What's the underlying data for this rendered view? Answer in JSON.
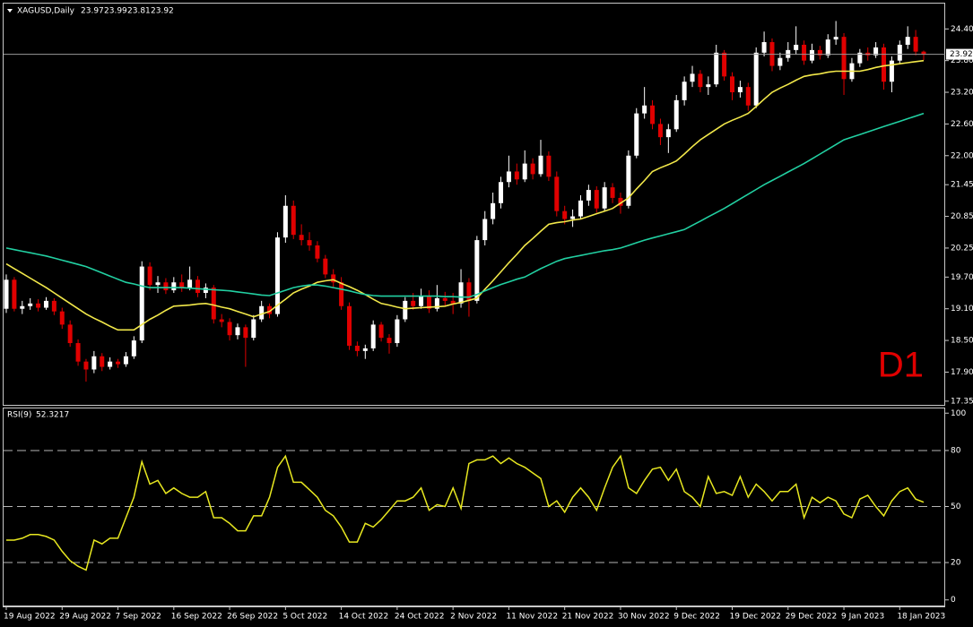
{
  "chart_data": [
    {
      "type": "candlestick",
      "title": "XAGUSD,Daily",
      "annotation": "D1",
      "categories": [
        "19 Aug 2022",
        null,
        null,
        null,
        null,
        null,
        null,
        "29 Aug 2022",
        null,
        null,
        null,
        null,
        null,
        null,
        "7 Sep 2022",
        null,
        null,
        null,
        null,
        null,
        null,
        "16 Sep 2022",
        null,
        null,
        null,
        null,
        null,
        null,
        "26 Sep 2022",
        null,
        null,
        null,
        null,
        null,
        null,
        "5 Oct 2022",
        null,
        null,
        null,
        null,
        null,
        null,
        "14 Oct 2022",
        null,
        null,
        null,
        null,
        null,
        null,
        "24 Oct 2022",
        null,
        null,
        null,
        null,
        null,
        null,
        "2 Nov 2022",
        null,
        null,
        null,
        null,
        null,
        null,
        "11 Nov 2022",
        null,
        null,
        null,
        null,
        null,
        null,
        "21 Nov 2022",
        null,
        null,
        null,
        null,
        null,
        null,
        "30 Nov 2022",
        null,
        null,
        null,
        null,
        null,
        null,
        "9 Dec 2022",
        null,
        null,
        null,
        null,
        null,
        null,
        "19 Dec 2022",
        null,
        null,
        null,
        null,
        null,
        null,
        "29 Dec 2022",
        null,
        null,
        null,
        null,
        null,
        null,
        "9 Jan 2023",
        null,
        null,
        null,
        null,
        null,
        null,
        "18 Jan 2023",
        null,
        null,
        null
      ],
      "candles": [
        [
          19.1,
          19.75,
          19.02,
          19.65
        ],
        [
          19.65,
          19.7,
          19.05,
          19.1
        ],
        [
          19.1,
          19.25,
          19.0,
          19.15
        ],
        [
          19.15,
          19.3,
          19.08,
          19.2
        ],
        [
          19.2,
          19.28,
          19.05,
          19.12
        ],
        [
          19.12,
          19.32,
          19.08,
          19.25
        ],
        [
          19.25,
          19.3,
          18.98,
          19.05
        ],
        [
          19.05,
          19.12,
          18.72,
          18.8
        ],
        [
          18.8,
          18.88,
          18.38,
          18.45
        ],
        [
          18.45,
          18.52,
          18.02,
          18.1
        ],
        [
          18.1,
          18.15,
          17.72,
          17.95
        ],
        [
          17.95,
          18.3,
          17.88,
          18.2
        ],
        [
          18.2,
          18.26,
          17.92,
          18.0
        ],
        [
          18.0,
          18.18,
          17.95,
          18.1
        ],
        [
          18.1,
          18.15,
          17.98,
          18.05
        ],
        [
          18.05,
          18.28,
          18.0,
          18.2
        ],
        [
          18.2,
          18.58,
          18.15,
          18.5
        ],
        [
          18.5,
          20.0,
          18.45,
          19.9
        ],
        [
          19.9,
          19.98,
          19.45,
          19.55
        ],
        [
          19.55,
          19.72,
          19.4,
          19.6
        ],
        [
          19.6,
          19.68,
          19.38,
          19.45
        ],
        [
          19.45,
          19.7,
          19.4,
          19.6
        ],
        [
          19.6,
          19.75,
          19.42,
          19.5
        ],
        [
          19.5,
          19.9,
          19.45,
          19.65
        ],
        [
          19.65,
          19.72,
          19.32,
          19.4
        ],
        [
          19.4,
          19.58,
          19.3,
          19.5
        ],
        [
          19.5,
          19.55,
          18.82,
          18.9
        ],
        [
          18.9,
          19.0,
          18.75,
          18.85
        ],
        [
          18.85,
          18.92,
          18.5,
          18.6
        ],
        [
          18.6,
          18.82,
          18.52,
          18.75
        ],
        [
          18.75,
          18.8,
          18.0,
          18.55
        ],
        [
          18.55,
          18.98,
          18.5,
          18.9
        ],
        [
          18.9,
          19.25,
          18.85,
          19.15
        ],
        [
          19.15,
          19.2,
          18.92,
          19.0
        ],
        [
          19.0,
          20.55,
          18.95,
          20.45
        ],
        [
          20.45,
          21.25,
          20.35,
          21.05
        ],
        [
          21.05,
          21.15,
          20.42,
          20.5
        ],
        [
          20.5,
          20.7,
          20.3,
          20.4
        ],
        [
          20.4,
          20.55,
          20.2,
          20.3
        ],
        [
          20.3,
          20.38,
          19.98,
          20.05
        ],
        [
          20.05,
          20.12,
          19.68,
          19.75
        ],
        [
          19.75,
          19.85,
          19.5,
          19.6
        ],
        [
          19.6,
          19.7,
          19.08,
          19.15
        ],
        [
          19.15,
          19.22,
          18.32,
          18.4
        ],
        [
          18.4,
          18.48,
          18.2,
          18.3
        ],
        [
          18.3,
          18.42,
          18.15,
          18.35
        ],
        [
          18.35,
          18.88,
          18.3,
          18.8
        ],
        [
          18.8,
          18.85,
          18.48,
          18.55
        ],
        [
          18.55,
          18.62,
          18.25,
          18.45
        ],
        [
          18.45,
          18.98,
          18.38,
          18.9
        ],
        [
          18.9,
          19.32,
          18.85,
          19.25
        ],
        [
          19.25,
          19.4,
          19.08,
          19.15
        ],
        [
          19.15,
          19.48,
          19.1,
          19.35
        ],
        [
          19.35,
          19.45,
          19.02,
          19.1
        ],
        [
          19.1,
          19.55,
          19.05,
          19.3
        ],
        [
          19.3,
          19.42,
          19.15,
          19.25
        ],
        [
          19.25,
          19.4,
          19.0,
          19.2
        ],
        [
          19.2,
          19.85,
          19.12,
          19.6
        ],
        [
          19.6,
          19.68,
          18.95,
          19.25
        ],
        [
          19.25,
          20.48,
          19.2,
          20.4
        ],
        [
          20.4,
          20.95,
          20.3,
          20.8
        ],
        [
          20.8,
          21.3,
          20.7,
          21.1
        ],
        [
          21.1,
          21.6,
          21.0,
          21.5
        ],
        [
          21.5,
          22.0,
          21.4,
          21.7
        ],
        [
          21.7,
          21.85,
          21.45,
          21.55
        ],
        [
          21.55,
          22.1,
          21.5,
          21.85
        ],
        [
          21.85,
          21.95,
          21.55,
          21.65
        ],
        [
          21.65,
          22.3,
          21.6,
          22.0
        ],
        [
          22.0,
          22.08,
          21.52,
          21.6
        ],
        [
          21.6,
          21.7,
          20.85,
          20.95
        ],
        [
          20.95,
          21.05,
          20.7,
          20.8
        ],
        [
          20.8,
          20.98,
          20.65,
          20.85
        ],
        [
          20.85,
          21.25,
          20.8,
          21.15
        ],
        [
          21.15,
          21.45,
          21.05,
          21.35
        ],
        [
          21.35,
          21.42,
          20.92,
          21.0
        ],
        [
          21.0,
          21.5,
          20.95,
          21.4
        ],
        [
          21.4,
          21.48,
          21.1,
          21.2
        ],
        [
          21.2,
          21.3,
          20.9,
          21.05
        ],
        [
          21.05,
          22.1,
          21.0,
          22.0
        ],
        [
          22.0,
          22.9,
          21.95,
          22.8
        ],
        [
          22.8,
          23.3,
          22.7,
          22.95
        ],
        [
          22.95,
          23.05,
          22.5,
          22.6
        ],
        [
          22.6,
          22.7,
          22.2,
          22.35
        ],
        [
          22.35,
          22.6,
          22.05,
          22.5
        ],
        [
          22.5,
          23.15,
          22.45,
          23.05
        ],
        [
          23.05,
          23.5,
          22.95,
          23.4
        ],
        [
          23.4,
          23.7,
          23.3,
          23.55
        ],
        [
          23.55,
          23.62,
          23.2,
          23.3
        ],
        [
          23.3,
          23.5,
          23.15,
          23.35
        ],
        [
          23.35,
          24.1,
          23.3,
          23.95
        ],
        [
          23.95,
          24.0,
          23.42,
          23.5
        ],
        [
          23.5,
          23.58,
          23.05,
          23.2
        ],
        [
          23.2,
          23.42,
          23.1,
          23.3
        ],
        [
          23.3,
          23.38,
          22.85,
          22.95
        ],
        [
          22.95,
          24.05,
          22.9,
          23.95
        ],
        [
          23.95,
          24.35,
          23.88,
          24.15
        ],
        [
          24.15,
          24.22,
          23.6,
          23.7
        ],
        [
          23.7,
          23.95,
          23.62,
          23.85
        ],
        [
          23.85,
          24.15,
          23.78,
          24.0
        ],
        [
          24.0,
          24.45,
          23.92,
          24.1
        ],
        [
          24.1,
          24.18,
          23.72,
          23.8
        ],
        [
          23.8,
          24.12,
          23.75,
          24.0
        ],
        [
          24.0,
          24.08,
          23.82,
          23.9
        ],
        [
          23.9,
          24.3,
          23.85,
          24.2
        ],
        [
          24.2,
          24.55,
          24.1,
          24.25
        ],
        [
          24.25,
          24.32,
          23.15,
          23.45
        ],
        [
          23.45,
          23.85,
          23.4,
          23.75
        ],
        [
          23.75,
          24.02,
          23.68,
          23.95
        ],
        [
          23.95,
          24.05,
          23.8,
          23.9
        ],
        [
          23.9,
          24.15,
          23.85,
          24.05
        ],
        [
          24.05,
          24.12,
          23.25,
          23.4
        ],
        [
          23.4,
          23.88,
          23.2,
          23.8
        ],
        [
          23.8,
          24.18,
          23.75,
          24.1
        ],
        [
          24.1,
          24.45,
          24.02,
          24.25
        ],
        [
          24.25,
          24.38,
          23.9,
          23.97
        ],
        [
          23.97,
          23.99,
          23.81,
          23.92
        ]
      ],
      "up_color": "#ffffff",
      "down_color": "#e00000",
      "price_line_color": "#9a9a9a",
      "series": [
        {
          "color": "#f2e84a",
          "values": [
            19.95,
            19.86,
            19.77,
            19.68,
            19.59,
            19.5,
            19.4,
            19.3,
            19.2,
            19.1,
            19.0,
            18.92,
            18.85,
            18.77,
            18.7,
            18.7,
            18.7,
            18.8,
            18.9,
            18.98,
            19.07,
            19.15,
            19.16,
            19.17,
            19.19,
            19.2,
            19.17,
            19.13,
            19.1,
            19.05,
            19.0,
            18.95,
            19.0,
            19.05,
            19.17,
            19.28,
            19.4,
            19.47,
            19.53,
            19.6,
            19.63,
            19.65,
            19.58,
            19.52,
            19.45,
            19.37,
            19.28,
            19.2,
            19.17,
            19.13,
            19.1,
            19.11,
            19.12,
            19.13,
            19.14,
            19.15,
            19.19,
            19.22,
            19.26,
            19.3,
            19.47,
            19.63,
            19.8,
            19.97,
            20.13,
            20.3,
            20.43,
            20.57,
            20.7,
            20.73,
            20.75,
            20.78,
            20.8,
            20.85,
            20.9,
            20.95,
            21.0,
            21.1,
            21.2,
            21.37,
            21.53,
            21.7,
            21.77,
            21.83,
            21.9,
            22.03,
            22.17,
            22.3,
            22.4,
            22.5,
            22.6,
            22.67,
            22.73,
            22.8,
            22.93,
            23.07,
            23.2,
            23.28,
            23.35,
            23.43,
            23.5,
            23.53,
            23.55,
            23.58,
            23.6,
            23.6,
            23.6,
            23.6,
            23.63,
            23.67,
            23.7,
            23.72,
            23.74,
            23.76,
            23.78,
            23.8
          ]
        },
        {
          "color": "#22d0a2",
          "values": [
            20.25,
            20.22,
            20.19,
            20.16,
            20.13,
            20.1,
            20.06,
            20.02,
            19.98,
            19.94,
            19.9,
            19.84,
            19.78,
            19.72,
            19.66,
            19.6,
            19.57,
            19.53,
            19.5,
            19.5,
            19.5,
            19.5,
            19.5,
            19.49,
            19.48,
            19.47,
            19.46,
            19.45,
            19.44,
            19.42,
            19.4,
            19.38,
            19.36,
            19.35,
            19.4,
            19.45,
            19.5,
            19.53,
            19.55,
            19.55,
            19.53,
            19.5,
            19.47,
            19.44,
            19.4,
            19.37,
            19.35,
            19.34,
            19.34,
            19.34,
            19.34,
            19.34,
            19.34,
            19.34,
            19.34,
            19.33,
            19.33,
            19.32,
            19.32,
            19.37,
            19.44,
            19.5,
            19.56,
            19.61,
            19.66,
            19.7,
            19.78,
            19.86,
            19.93,
            20.0,
            20.05,
            20.08,
            20.11,
            20.14,
            20.17,
            20.2,
            20.22,
            20.25,
            20.3,
            20.35,
            20.4,
            20.44,
            20.48,
            20.52,
            20.56,
            20.6,
            20.68,
            20.76,
            20.84,
            20.92,
            21.0,
            21.09,
            21.18,
            21.27,
            21.36,
            21.45,
            21.53,
            21.61,
            21.69,
            21.77,
            21.85,
            21.94,
            22.03,
            22.12,
            22.21,
            22.3,
            22.35,
            22.4,
            22.45,
            22.5,
            22.55,
            22.6,
            22.65,
            22.7,
            22.75,
            22.8
          ]
        }
      ],
      "ylim": [
        17.28,
        24.88
      ],
      "yticks": [
        {
          "value": 24.4,
          "label": "24.40"
        },
        {
          "value": 23.8,
          "label": "23.80"
        },
        {
          "value": 23.2,
          "label": "23.20"
        },
        {
          "value": 22.6,
          "label": "22.60"
        },
        {
          "value": 22,
          "label": "22.00"
        },
        21.45,
        20.85,
        20.25,
        {
          "value": 19.7,
          "label": "19.70"
        },
        {
          "value": 19.1,
          "label": "19.10"
        },
        {
          "value": 18.5,
          "label": "18.50"
        },
        {
          "value": 17.9,
          "label": "17.90"
        },
        17.35
      ]
    },
    {
      "type": "line",
      "title": "RSI(9)",
      "color": "#e8e820",
      "values": [
        32,
        32,
        33,
        35,
        35,
        34,
        32,
        26,
        21,
        18,
        16,
        32,
        30,
        33,
        33,
        44,
        55,
        74,
        62,
        64,
        57,
        60,
        57,
        55,
        55,
        58,
        44,
        44,
        41,
        37,
        37,
        45,
        45,
        55,
        71,
        77,
        63,
        63,
        59,
        55,
        48,
        45,
        39,
        31,
        31,
        41,
        39,
        43,
        48,
        53,
        53,
        55,
        60,
        48,
        51,
        50,
        60,
        49,
        73,
        75,
        75,
        77,
        73,
        76,
        73,
        71,
        68,
        65,
        50,
        53,
        47,
        55,
        60,
        55,
        48,
        60,
        71,
        77,
        60,
        57,
        64,
        70,
        71,
        64,
        70,
        58,
        55,
        50,
        66,
        57,
        58,
        56,
        66,
        55,
        62,
        58,
        53,
        58,
        58,
        62,
        44,
        55,
        52,
        55,
        53,
        46,
        44,
        54,
        56,
        50,
        45,
        53,
        58,
        60,
        54,
        52.3217
      ],
      "ylim": [
        -3,
        103
      ],
      "yticks": [
        100,
        80,
        50,
        20,
        0
      ],
      "levels": [
        80,
        50,
        20
      ]
    }
  ]
}
